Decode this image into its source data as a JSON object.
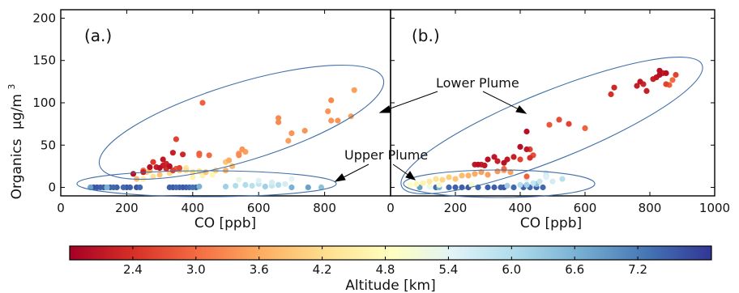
{
  "chart_data": {
    "type": "scatter",
    "ylabel": "Organics",
    "ylabel_unit": "μg/m",
    "ylabel_sup": "3",
    "xlabel": "CO [ppb]",
    "ylim": [
      -10,
      210
    ],
    "yticks": [
      0,
      50,
      100,
      150,
      200
    ],
    "colorbar": {
      "label": "Altitude [km]",
      "range": [
        1.8,
        7.9
      ],
      "ticks": [
        "2.4",
        "3.0",
        "3.6",
        "4.2",
        "4.8",
        "5.4",
        "6.0",
        "6.6",
        "7.2"
      ],
      "colormap": [
        "#a50026",
        "#d73027",
        "#f46d43",
        "#fdae61",
        "#fee090",
        "#ffffbf",
        "#e0f3f8",
        "#abd9e9",
        "#74add1",
        "#4575b4",
        "#313695"
      ]
    },
    "annotations": {
      "lower_plume": "Lower Plume",
      "upper_plume": "Upper Plume"
    },
    "panels": [
      {
        "label": "(a.)",
        "xlim": [
          0,
          1000
        ],
        "xticks": [
          "0",
          "200",
          "400",
          "600",
          "800"
        ],
        "points": [
          [
            100,
            0,
            7.6
          ],
          [
            110,
            0,
            7.6
          ],
          [
            120,
            0,
            7.5
          ],
          [
            130,
            0,
            7.5
          ],
          [
            140,
            0,
            7.6
          ],
          [
            150,
            0,
            7.5
          ],
          [
            160,
            0,
            7.4
          ],
          [
            170,
            0,
            7.5
          ],
          [
            190,
            0,
            7.4
          ],
          [
            200,
            0,
            7.6
          ],
          [
            210,
            0,
            7.5
          ],
          [
            230,
            0,
            7.6
          ],
          [
            240,
            0,
            7.4
          ],
          [
            330,
            0,
            7.5
          ],
          [
            340,
            0,
            7.6
          ],
          [
            350,
            0,
            7.4
          ],
          [
            360,
            0,
            7.5
          ],
          [
            370,
            0,
            7.6
          ],
          [
            380,
            0,
            7.5
          ],
          [
            390,
            0,
            7.4
          ],
          [
            400,
            0,
            7.3
          ],
          [
            410,
            0,
            7.5
          ],
          [
            90,
            0,
            6.8
          ],
          [
            140,
            0,
            6.6
          ],
          [
            420,
            1,
            6.6
          ],
          [
            500,
            1,
            6.2
          ],
          [
            530,
            2,
            6.0
          ],
          [
            560,
            3,
            6.0
          ],
          [
            580,
            2,
            5.9
          ],
          [
            600,
            4,
            5.8
          ],
          [
            620,
            1,
            6.2
          ],
          [
            640,
            2,
            5.8
          ],
          [
            660,
            3,
            6.0
          ],
          [
            680,
            4,
            5.6
          ],
          [
            700,
            0,
            6.6
          ],
          [
            750,
            0,
            6.8
          ],
          [
            790,
            0,
            6.4
          ],
          [
            640,
            6,
            5.6
          ],
          [
            600,
            8,
            5.5
          ],
          [
            700,
            10,
            5.4
          ],
          [
            540,
            9,
            5.3
          ],
          [
            220,
            16,
            2.0
          ],
          [
            250,
            18,
            2.2
          ],
          [
            270,
            24,
            2.0
          ],
          [
            290,
            24,
            2.2
          ],
          [
            300,
            23,
            2.0
          ],
          [
            310,
            26,
            2.2
          ],
          [
            320,
            22,
            2.4
          ],
          [
            330,
            25,
            2.0
          ],
          [
            340,
            20,
            2.6
          ],
          [
            350,
            22,
            2.8
          ],
          [
            360,
            23,
            2.6
          ],
          [
            320,
            28,
            2.3
          ],
          [
            310,
            33,
            2.1
          ],
          [
            280,
            30,
            2.5
          ],
          [
            370,
            39,
            2.3
          ],
          [
            340,
            41,
            2.2
          ],
          [
            350,
            57,
            2.6
          ],
          [
            430,
            100,
            2.9
          ],
          [
            420,
            38,
            3.0
          ],
          [
            450,
            38,
            3.0
          ],
          [
            420,
            40,
            2.9
          ],
          [
            250,
            20,
            3.0
          ],
          [
            230,
            10,
            3.8
          ],
          [
            260,
            18,
            4.0
          ],
          [
            270,
            20,
            3.7
          ],
          [
            300,
            15,
            3.9
          ],
          [
            330,
            17,
            4.1
          ],
          [
            280,
            13,
            4.3
          ],
          [
            250,
            10,
            4.5
          ],
          [
            360,
            20,
            4.0
          ],
          [
            380,
            20,
            4.2
          ],
          [
            400,
            18,
            4.2
          ],
          [
            420,
            19,
            4.3
          ],
          [
            440,
            18,
            3.9
          ],
          [
            470,
            20,
            4.1
          ],
          [
            500,
            20,
            3.7
          ],
          [
            520,
            25,
            3.8
          ],
          [
            500,
            30,
            3.9
          ],
          [
            380,
            23,
            4.4
          ],
          [
            400,
            12,
            4.6
          ],
          [
            430,
            14,
            4.6
          ],
          [
            460,
            15,
            4.7
          ],
          [
            510,
            32,
            3.6
          ],
          [
            540,
            40,
            3.4
          ],
          [
            550,
            45,
            3.4
          ],
          [
            560,
            42,
            3.5
          ],
          [
            540,
            38,
            3.3
          ],
          [
            660,
            77,
            3.3
          ],
          [
            660,
            82,
            3.3
          ],
          [
            700,
            64,
            3.4
          ],
          [
            740,
            67,
            3.4
          ],
          [
            810,
            90,
            3.4
          ],
          [
            820,
            103,
            3.3
          ],
          [
            820,
            79,
            3.4
          ],
          [
            840,
            79,
            3.4
          ],
          [
            880,
            84,
            3.5
          ],
          [
            890,
            115,
            3.5
          ],
          [
            690,
            55,
            3.5
          ]
        ]
      },
      {
        "label": "(b.)",
        "xlim": [
          0,
          1000
        ],
        "xticks": [
          "0",
          "200",
          "400",
          "600",
          "800",
          "1000"
        ],
        "points": [
          [
            140,
            0,
            7.4
          ],
          [
            180,
            0,
            7.4
          ],
          [
            200,
            0,
            7.5
          ],
          [
            220,
            0,
            7.5
          ],
          [
            240,
            0,
            7.6
          ],
          [
            270,
            0,
            7.4
          ],
          [
            300,
            0,
            7.5
          ],
          [
            320,
            0,
            7.5
          ],
          [
            340,
            0,
            7.5
          ],
          [
            350,
            0,
            7.6
          ],
          [
            380,
            0,
            7.4
          ],
          [
            410,
            0,
            7.5
          ],
          [
            430,
            0,
            7.4
          ],
          [
            450,
            0,
            7.5
          ],
          [
            470,
            0,
            7.4
          ],
          [
            90,
            0,
            6.8
          ],
          [
            150,
            0,
            6.6
          ],
          [
            360,
            2,
            6.2
          ],
          [
            400,
            3,
            6.0
          ],
          [
            420,
            3,
            6.2
          ],
          [
            440,
            5,
            5.8
          ],
          [
            460,
            7,
            5.8
          ],
          [
            500,
            7,
            5.6
          ],
          [
            420,
            10,
            5.5
          ],
          [
            480,
            12,
            5.5
          ],
          [
            530,
            10,
            5.9
          ],
          [
            480,
            17,
            5.6
          ],
          [
            480,
            13,
            6.2
          ],
          [
            450,
            4,
            6.4
          ],
          [
            60,
            3,
            4.9
          ],
          [
            80,
            4,
            4.7
          ],
          [
            100,
            5,
            4.6
          ],
          [
            120,
            7,
            4.4
          ],
          [
            140,
            10,
            4.3
          ],
          [
            160,
            9,
            4.1
          ],
          [
            180,
            12,
            4.0
          ],
          [
            200,
            10,
            3.9
          ],
          [
            220,
            14,
            3.8
          ],
          [
            240,
            14,
            3.7
          ],
          [
            260,
            16,
            3.6
          ],
          [
            280,
            18,
            3.5
          ],
          [
            300,
            15,
            3.5
          ],
          [
            330,
            19,
            3.4
          ],
          [
            350,
            20,
            3.6
          ],
          [
            370,
            18,
            3.5
          ],
          [
            150,
            3,
            5.0
          ],
          [
            120,
            1,
            5.2
          ],
          [
            250,
            3,
            5.0
          ],
          [
            260,
            27,
            2.1
          ],
          [
            270,
            27,
            2.0
          ],
          [
            280,
            27,
            2.2
          ],
          [
            290,
            26,
            2.1
          ],
          [
            300,
            33,
            2.0
          ],
          [
            320,
            36,
            2.1
          ],
          [
            330,
            31,
            2.2
          ],
          [
            350,
            29,
            2.0
          ],
          [
            360,
            33,
            2.1
          ],
          [
            380,
            36,
            2.2
          ],
          [
            400,
            48,
            2.0
          ],
          [
            420,
            45,
            2.1
          ],
          [
            420,
            66,
            2.0
          ],
          [
            430,
            45,
            2.6
          ],
          [
            430,
            35,
            2.4
          ],
          [
            440,
            38,
            2.7
          ],
          [
            400,
            33,
            2.6
          ],
          [
            420,
            13,
            2.9
          ],
          [
            350,
            22,
            3.0
          ],
          [
            490,
            74,
            2.8
          ],
          [
            520,
            80,
            2.7
          ],
          [
            550,
            75,
            2.6
          ],
          [
            600,
            70,
            2.9
          ],
          [
            680,
            110,
            2.4
          ],
          [
            690,
            118,
            2.3
          ],
          [
            760,
            120,
            2.2
          ],
          [
            770,
            125,
            2.1
          ],
          [
            780,
            122,
            2.3
          ],
          [
            790,
            114,
            2.2
          ],
          [
            810,
            128,
            2.2
          ],
          [
            820,
            130,
            2.1
          ],
          [
            830,
            138,
            2.0
          ],
          [
            840,
            135,
            2.2
          ],
          [
            850,
            122,
            2.6
          ],
          [
            860,
            121,
            2.9
          ],
          [
            870,
            127,
            3.0
          ],
          [
            880,
            133,
            2.6
          ],
          [
            830,
            133,
            2.0
          ],
          [
            850,
            135,
            2.0
          ]
        ]
      }
    ]
  }
}
